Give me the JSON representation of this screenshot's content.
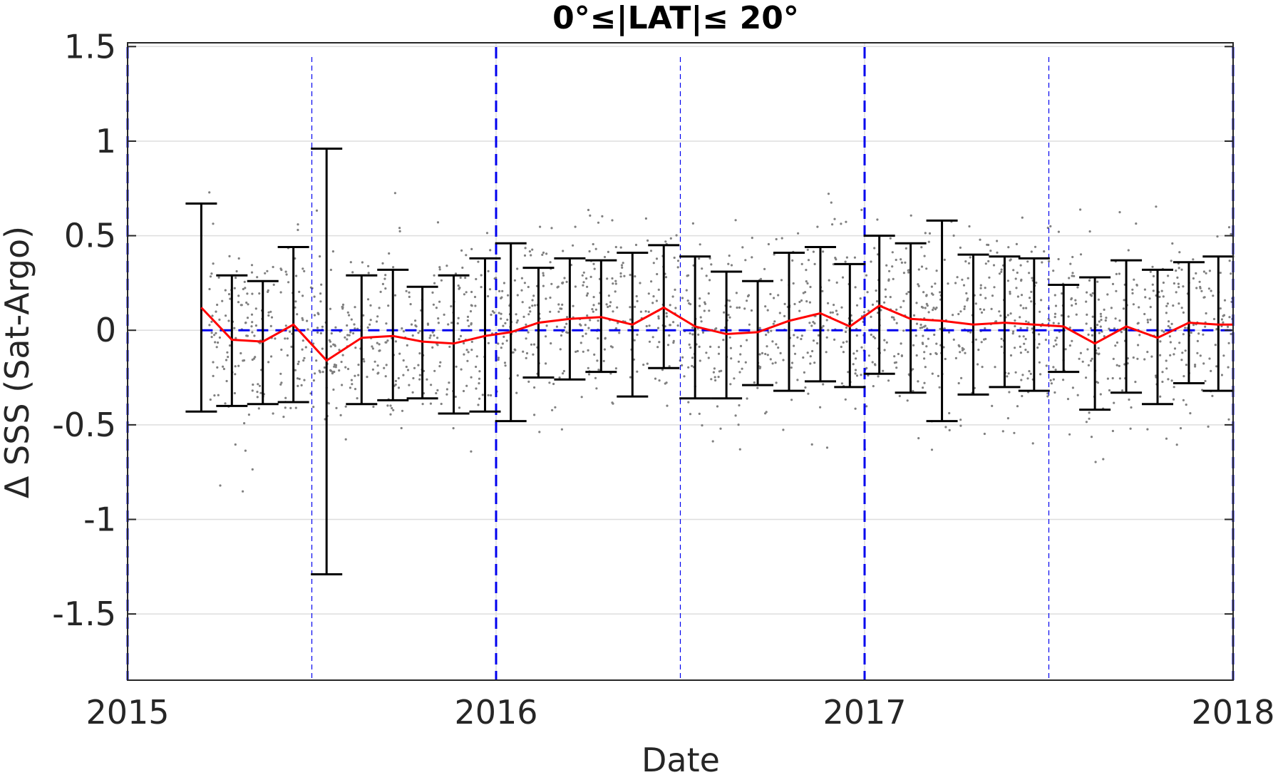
{
  "chart_data": {
    "type": "scatter",
    "title": "0°≤|LAT|≤ 20°",
    "xlabel": "Date",
    "ylabel": "Δ SSS (Sat-Argo)",
    "xlim": [
      2015.0,
      2018.0
    ],
    "ylim": [
      -1.85,
      1.52
    ],
    "xticks": [
      2015,
      2016,
      2017,
      2018
    ],
    "xtick_labels": [
      "2015",
      "2016",
      "2017",
      "2018"
    ],
    "yticks": [
      1.5,
      1,
      0.5,
      0,
      -0.5,
      -1,
      -1.5
    ],
    "ytick_labels": [
      "1.5",
      "1",
      "0.5",
      "0",
      "-0.5",
      "-1",
      "-1.5"
    ],
    "grid": true,
    "colors": {
      "mean_line": "#ff0000",
      "error_bars": "#000000",
      "zero_line": "#0000ee",
      "year_lines": "#0000ee",
      "scatter": "#808080"
    },
    "series": [
      {
        "type": "errorbar",
        "x": [
          2015.2,
          2015.283,
          2015.367,
          2015.45,
          2015.54,
          2015.635,
          2015.72,
          2015.8,
          2015.885,
          2015.97,
          2016.04,
          2016.115,
          2016.2,
          2016.285,
          2016.37,
          2016.455,
          2016.54,
          2016.625,
          2016.71,
          2016.795,
          2016.88,
          2016.96,
          2017.04,
          2017.125,
          2017.21,
          2017.295,
          2017.38,
          2017.46,
          2017.54,
          2017.625,
          2017.71,
          2017.795,
          2017.88,
          2017.96
        ],
        "mean": [
          0.12,
          -0.05,
          -0.06,
          0.03,
          -0.16,
          -0.04,
          -0.03,
          -0.06,
          -0.07,
          -0.03,
          -0.01,
          0.04,
          0.06,
          0.07,
          0.03,
          0.12,
          0.02,
          -0.02,
          -0.01,
          0.05,
          0.09,
          0.02,
          0.13,
          0.06,
          0.05,
          0.03,
          0.04,
          0.03,
          0.02,
          -0.07,
          0.02,
          -0.04,
          0.04,
          0.03
        ],
        "upper": [
          0.67,
          0.29,
          0.26,
          0.44,
          0.96,
          0.29,
          0.32,
          0.23,
          0.29,
          0.38,
          0.46,
          0.33,
          0.38,
          0.37,
          0.41,
          0.45,
          0.39,
          0.31,
          0.26,
          0.41,
          0.44,
          0.35,
          0.5,
          0.46,
          0.58,
          0.4,
          0.39,
          0.38,
          0.24,
          0.28,
          0.37,
          0.32,
          0.36,
          0.39
        ],
        "lower": [
          -0.43,
          -0.4,
          -0.39,
          -0.38,
          -1.29,
          -0.39,
          -0.37,
          -0.36,
          -0.44,
          -0.43,
          -0.48,
          -0.25,
          -0.26,
          -0.22,
          -0.35,
          -0.2,
          -0.36,
          -0.36,
          -0.29,
          -0.32,
          -0.27,
          -0.3,
          -0.23,
          -0.33,
          -0.48,
          -0.34,
          -0.3,
          -0.32,
          -0.22,
          -0.42,
          -0.33,
          -0.39,
          -0.28,
          -0.32
        ]
      }
    ],
    "year_lines_x": [
      2015.0,
      2016.0,
      2017.0,
      2018.0
    ],
    "half_year_lines_x": [
      2015.5,
      2016.5,
      2017.5
    ],
    "scatter_points": 1800
  }
}
